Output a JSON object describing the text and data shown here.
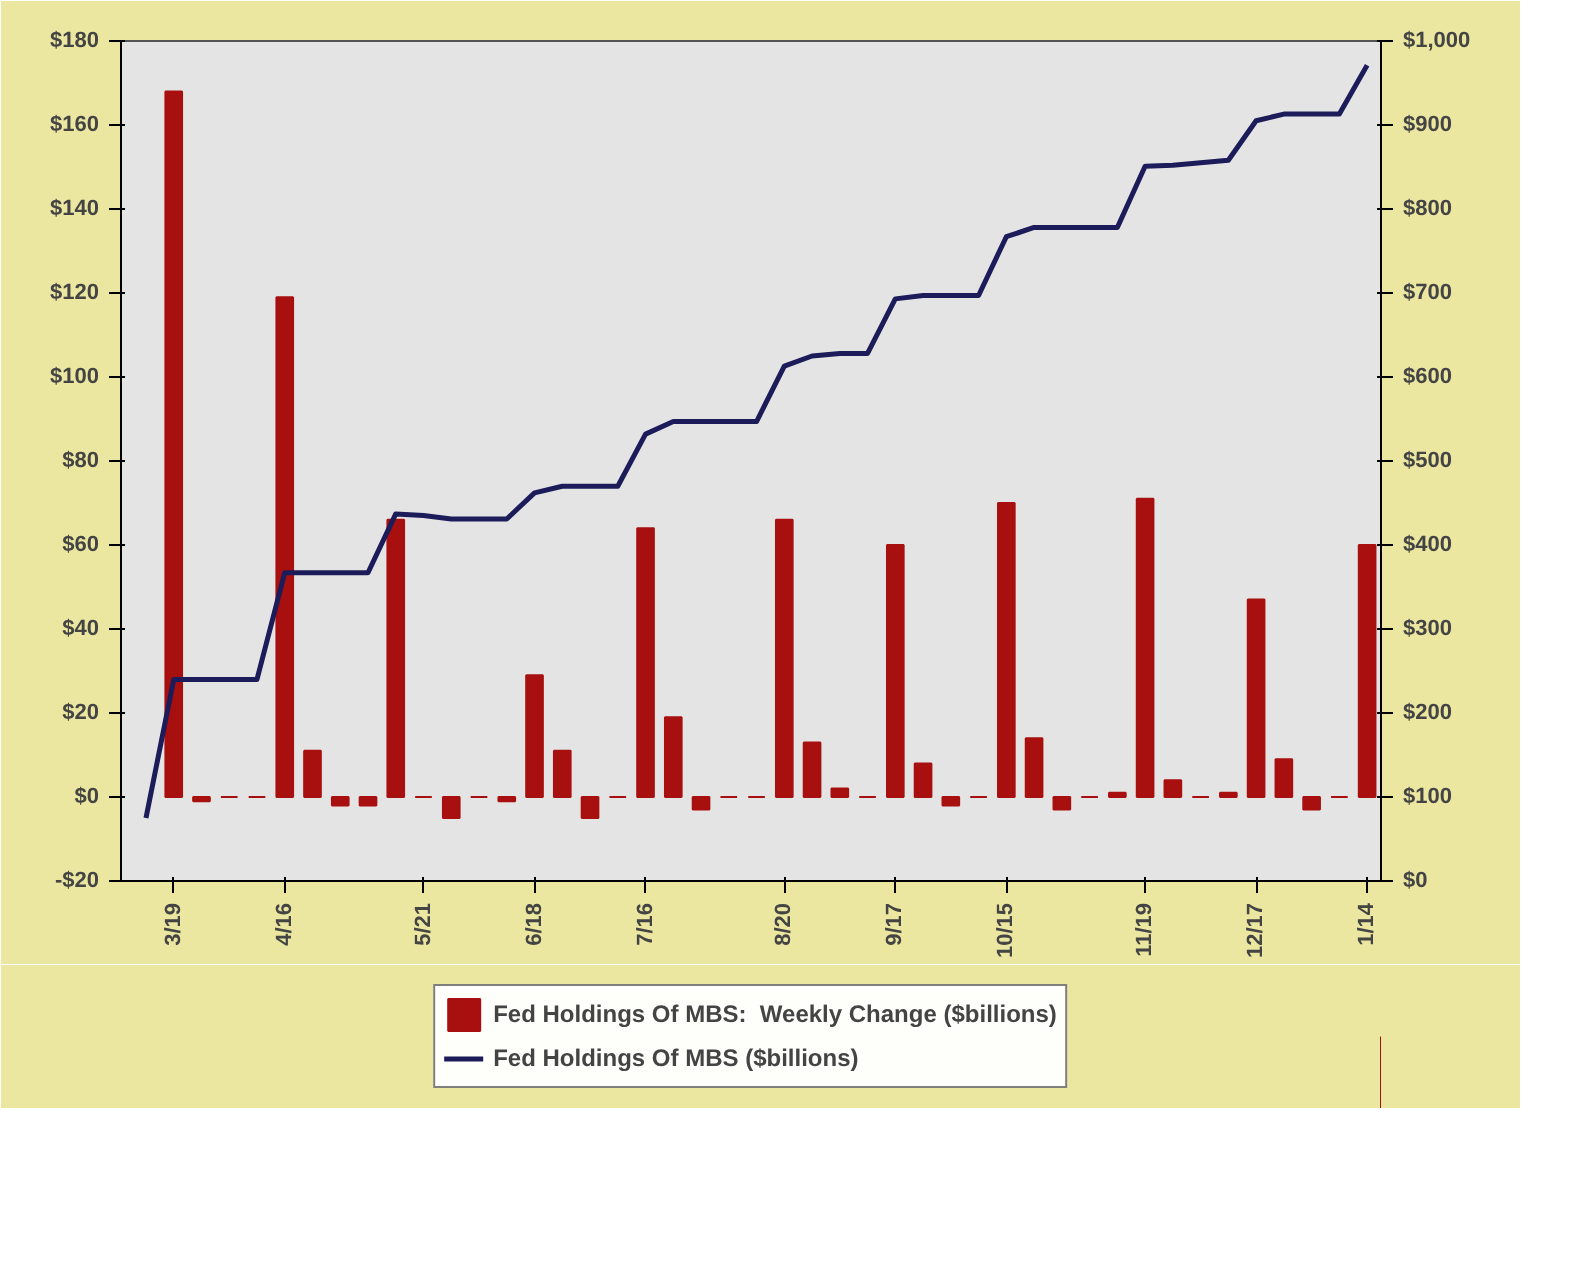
{
  "chart_data": {
    "type": "bar",
    "categories": [
      null,
      "3/19",
      null,
      null,
      null,
      "4/16",
      null,
      null,
      null,
      null,
      "5/21",
      null,
      null,
      null,
      "6/18",
      null,
      null,
      null,
      "7/16",
      null,
      null,
      null,
      null,
      "8/20",
      null,
      null,
      null,
      "9/17",
      null,
      null,
      null,
      "10/15",
      null,
      null,
      null,
      null,
      "11/19",
      null,
      null,
      null,
      "12/17",
      null,
      null,
      null,
      "1/14"
    ],
    "series": [
      {
        "name": "Fed Holdings Of MBS:  Weekly Change ($billions)",
        "color": "#a80f0f",
        "values": [
          null,
          168,
          -1,
          0,
          0,
          119,
          11,
          -2,
          -2,
          66,
          0,
          -5,
          0,
          -1,
          29,
          11,
          -5,
          0,
          64,
          19,
          -3,
          0,
          0,
          66,
          13,
          2,
          0,
          60,
          8,
          -2,
          0,
          70,
          14,
          -3,
          0,
          1,
          71,
          4,
          0,
          1,
          47,
          9,
          -3,
          0,
          60
        ]
      },
      {
        "name": "Fed Holdings Of MBS ($billions)",
        "type": "line",
        "axis": "y2",
        "color": "#1c1c5a",
        "values": [
          75,
          240,
          240,
          240,
          240,
          367,
          367,
          367,
          367,
          437,
          435,
          431,
          431,
          431,
          462,
          470,
          470,
          470,
          532,
          547,
          547,
          547,
          547,
          613,
          625,
          628,
          628,
          693,
          697,
          697,
          697,
          767,
          778,
          778,
          778,
          778,
          851,
          852,
          855,
          858,
          905,
          913,
          913,
          913,
          971
        ]
      }
    ],
    "ylim": [
      -20,
      180
    ],
    "yticks": [
      {
        "value": -20,
        "label": "-$20"
      },
      {
        "value": 0,
        "label": "$0"
      },
      {
        "value": 20,
        "label": "$20"
      },
      {
        "value": 40,
        "label": "$40"
      },
      {
        "value": 60,
        "label": "$60"
      },
      {
        "value": 80,
        "label": "$80"
      },
      {
        "value": 100,
        "label": "$100"
      },
      {
        "value": 120,
        "label": "$120"
      },
      {
        "value": 140,
        "label": "$140"
      },
      {
        "value": 160,
        "label": "$160"
      },
      {
        "value": 180,
        "label": "$180"
      }
    ],
    "y2lim": [
      0,
      1000
    ],
    "y2ticks": [
      {
        "value": 0,
        "label": "$0"
      },
      {
        "value": 100,
        "label": "$100"
      },
      {
        "value": 200,
        "label": "$200"
      },
      {
        "value": 300,
        "label": "$300"
      },
      {
        "value": 400,
        "label": "$400"
      },
      {
        "value": 500,
        "label": "$500"
      },
      {
        "value": 600,
        "label": "$600"
      },
      {
        "value": 700,
        "label": "$700"
      },
      {
        "value": 800,
        "label": "$800"
      },
      {
        "value": 900,
        "label": "$900"
      },
      {
        "value": 1000,
        "label": "$1,000"
      }
    ],
    "grid": false,
    "legend": "bottom"
  }
}
